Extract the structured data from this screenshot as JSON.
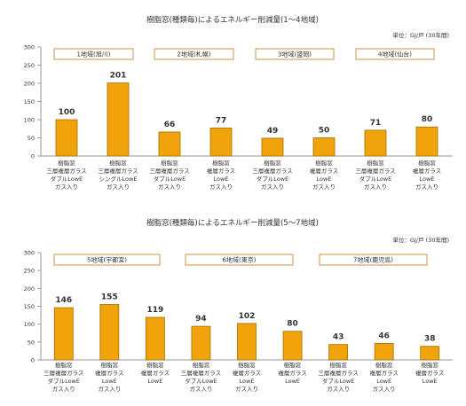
{
  "colors": {
    "bar": "#f0a30a",
    "bar_edge": "#a86e00",
    "axis": "#999999",
    "box_edge": "#c07818"
  },
  "chart_data": [
    {
      "type": "bar",
      "title": "樹脂窓(種類毎)によるエネルギー削減量(1～4地域)",
      "unit": "単位：GJ/戸 (30年間)",
      "ylim": [
        0,
        300
      ],
      "yticks": [
        0,
        50,
        100,
        150,
        200,
        250,
        300
      ],
      "grid": false,
      "regions": [
        "1地域(旭川)",
        "2地域(札幌)",
        "3地域(盛岡)",
        "4地域(仙台)"
      ],
      "categories": [
        [
          "樹脂窓",
          "三層複層ガラス",
          "ダブルLowE",
          "ガス入り"
        ],
        [
          "樹脂窓",
          "三層複層ガラス",
          "シングルLowE",
          "ガス入り"
        ],
        [
          "樹脂窓",
          "三層複層ガラス",
          "ダブルLowE",
          "ガス入り"
        ],
        [
          "樹脂窓",
          "複層ガラス",
          "LowE",
          "ガス入り"
        ],
        [
          "樹脂窓",
          "三層複層ガラス",
          "ダブルLowE",
          "ガス入り"
        ],
        [
          "樹脂窓",
          "複層ガラス",
          "LowE",
          "ガス入り"
        ],
        [
          "樹脂窓",
          "三層複層ガラス",
          "ダブルLowE",
          "ガス入り"
        ],
        [
          "樹脂窓",
          "複層ガラス",
          "LowE",
          "ガス入り"
        ]
      ],
      "values": [
        100,
        201,
        66,
        77,
        49,
        50,
        71,
        80
      ]
    },
    {
      "type": "bar",
      "title": "樹脂窓(種類毎)によるエネルギー削減量(5～7地域)",
      "unit": "単位：GJ/戸 (30年間)",
      "ylim": [
        0,
        300
      ],
      "yticks": [
        0,
        50,
        100,
        150,
        200,
        250,
        300
      ],
      "grid": false,
      "regions": [
        "5地域(宇都宮)",
        "6地域(東京)",
        "7地域(鹿児島)"
      ],
      "categories": [
        [
          "樹脂窓",
          "三層複層ガラス",
          "ダブルLowE",
          "ガス入り"
        ],
        [
          "樹脂窓",
          "複層ガラス",
          "LowE",
          "ガス入り"
        ],
        [
          "樹脂窓",
          "複層ガラス",
          "LowE"
        ],
        [
          "樹脂窓",
          "三層複層ガラス",
          "ダブルLowE",
          "ガス入り"
        ],
        [
          "樹脂窓",
          "複層ガラス",
          "LowE",
          "ガス入り"
        ],
        [
          "樹脂窓",
          "複層ガラス",
          "LowE"
        ],
        [
          "樹脂窓",
          "三層複層ガラス",
          "ダブルLowE",
          "ガス入り"
        ],
        [
          "樹脂窓",
          "複層ガラス",
          "LowE",
          "ガス入り"
        ],
        [
          "樹脂窓",
          "複層ガラス",
          "LowE"
        ]
      ],
      "values": [
        146,
        155,
        119,
        94,
        102,
        80,
        43,
        46,
        38
      ]
    }
  ]
}
